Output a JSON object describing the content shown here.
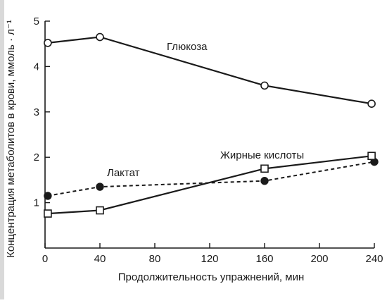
{
  "chart_data": {
    "type": "line",
    "title": "",
    "xlabel": "Продолжительность упражнений, мин",
    "ylabel": "Концентрация метаболитов в крови, ммоль · л⁻¹",
    "xlim": [
      0,
      240
    ],
    "ylim": [
      0,
      5
    ],
    "x_ticks": [
      0,
      40,
      80,
      120,
      160,
      200,
      240
    ],
    "y_ticks": [
      1,
      2,
      3,
      4,
      5
    ],
    "grid": false,
    "series": [
      {
        "name": "Глюкоза",
        "x": [
          2,
          40,
          160,
          238
        ],
        "y": [
          4.52,
          4.65,
          3.58,
          3.18
        ],
        "marker": "open-circle",
        "line": "solid",
        "color": "#1a1a1a"
      },
      {
        "name": "Лактат",
        "x": [
          2,
          40,
          160,
          240
        ],
        "y": [
          1.15,
          1.35,
          1.48,
          1.9
        ],
        "marker": "filled-circle",
        "line": "dashed",
        "color": "#1a1a1a"
      },
      {
        "name": "Жирные кислоты",
        "x": [
          2,
          40,
          160,
          238
        ],
        "y": [
          0.76,
          0.83,
          1.75,
          2.03
        ],
        "marker": "open-square",
        "line": "solid",
        "color": "#1a1a1a"
      }
    ]
  }
}
